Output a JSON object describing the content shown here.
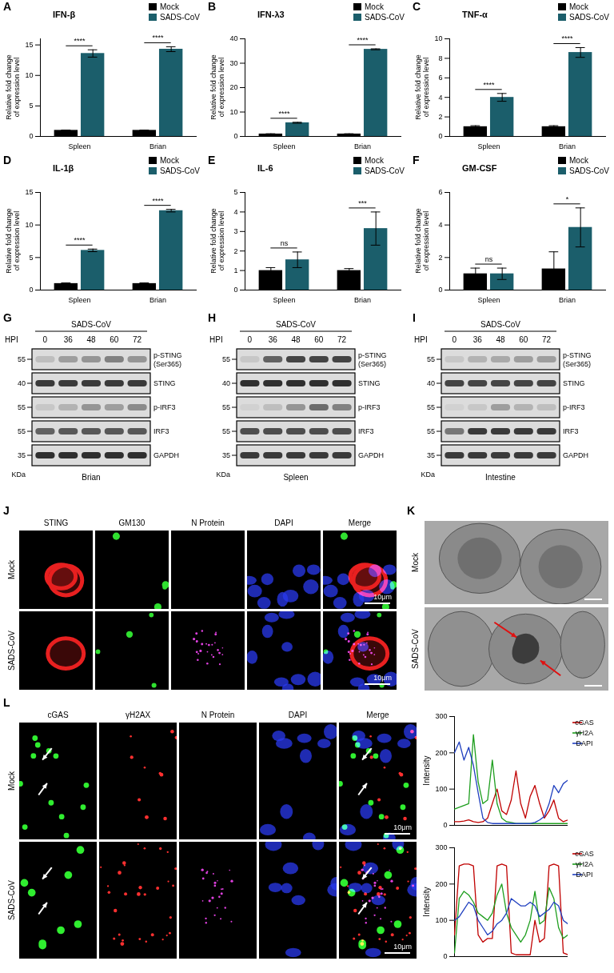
{
  "chart_data": [
    {
      "panel_label": "A",
      "type": "bar",
      "title": "IFN-β",
      "y_label": "Relative fold change of expression level",
      "categories": [
        "Spleen",
        "Brian"
      ],
      "series": [
        {
          "name": "Mock",
          "color": "#000000",
          "values": [
            1,
            1
          ],
          "errors": [
            0.05,
            0.05
          ]
        },
        {
          "name": "SADS-CoV",
          "color": "#1b5e6b",
          "values": [
            13.6,
            14.3
          ],
          "errors": [
            0.6,
            0.4
          ]
        }
      ],
      "significance": [
        "****",
        "****"
      ],
      "ylim": [
        0,
        16
      ],
      "yticks": [
        0,
        5,
        10,
        15
      ],
      "legend": "top right"
    },
    {
      "panel_label": "B",
      "type": "bar",
      "title": "IFN-λ3",
      "y_label": "Relative fold change of expression level",
      "categories": [
        "Spleen",
        "Brian"
      ],
      "series": [
        {
          "name": "Mock",
          "color": "#000000",
          "values": [
            1,
            1
          ],
          "errors": [
            0.1,
            0.1
          ]
        },
        {
          "name": "SADS-CoV",
          "color": "#1b5e6b",
          "values": [
            5.6,
            35.7
          ],
          "errors": [
            0.2,
            0.2
          ]
        }
      ],
      "significance": [
        "****",
        "****"
      ],
      "ylim": [
        0,
        40
      ],
      "yticks": [
        0,
        10,
        20,
        30,
        40
      ],
      "legend": "top right"
    },
    {
      "panel_label": "C",
      "type": "bar",
      "title": "TNF-α",
      "y_label": "Relative fold change of expression level",
      "categories": [
        "Spleen",
        "Brian"
      ],
      "series": [
        {
          "name": "Mock",
          "color": "#000000",
          "values": [
            1,
            1
          ],
          "errors": [
            0.1,
            0.1
          ]
        },
        {
          "name": "SADS-CoV",
          "color": "#1b5e6b",
          "values": [
            4.0,
            8.6
          ],
          "errors": [
            0.4,
            0.5
          ]
        }
      ],
      "significance": [
        "****",
        "****"
      ],
      "ylim": [
        0,
        10
      ],
      "yticks": [
        0,
        2,
        4,
        6,
        8,
        10
      ],
      "legend": "top right"
    },
    {
      "panel_label": "D",
      "type": "bar",
      "title": "IL-1β",
      "y_label": "Relative fold change of expression level",
      "categories": [
        "Spleen",
        "Brian"
      ],
      "series": [
        {
          "name": "Mock",
          "color": "#000000",
          "values": [
            1,
            1
          ],
          "errors": [
            0.1,
            0.1
          ]
        },
        {
          "name": "SADS-CoV",
          "color": "#1b5e6b",
          "values": [
            6.1,
            12.2
          ],
          "errors": [
            0.2,
            0.2
          ]
        }
      ],
      "significance": [
        "****",
        "****"
      ],
      "ylim": [
        0,
        15
      ],
      "yticks": [
        0,
        5,
        10,
        15
      ],
      "legend": "top right"
    },
    {
      "panel_label": "E",
      "type": "bar",
      "title": "IL-6",
      "y_label": "Relative fold change of expression level",
      "categories": [
        "Spleen",
        "Brian"
      ],
      "series": [
        {
          "name": "Mock",
          "color": "#000000",
          "values": [
            1.0,
            1.0
          ],
          "errors": [
            0.15,
            0.1
          ]
        },
        {
          "name": "SADS-CoV",
          "color": "#1b5e6b",
          "values": [
            1.55,
            3.15
          ],
          "errors": [
            0.4,
            0.85
          ]
        }
      ],
      "significance": [
        "ns",
        "***"
      ],
      "ylim": [
        0,
        5
      ],
      "yticks": [
        0,
        1,
        2,
        3,
        4,
        5
      ],
      "legend": "top right"
    },
    {
      "panel_label": "F",
      "type": "bar",
      "title": "GM-CSF",
      "y_label": "Relative fold change of expression level",
      "categories": [
        "Spleen",
        "Brian"
      ],
      "series": [
        {
          "name": "Mock",
          "color": "#000000",
          "values": [
            1.0,
            1.3
          ],
          "errors": [
            0.35,
            1.05
          ]
        },
        {
          "name": "SADS-CoV",
          "color": "#1b5e6b",
          "values": [
            1.0,
            3.85
          ],
          "errors": [
            0.35,
            1.2
          ]
        }
      ],
      "significance": [
        "ns",
        "*"
      ],
      "ylim": [
        0,
        6
      ],
      "yticks": [
        0,
        2,
        4,
        6
      ],
      "legend": "top right"
    },
    {
      "type": "line",
      "y_label": "Intensity",
      "tick_labels": "y",
      "legend": "right",
      "x": [
        0,
        1,
        2,
        3,
        4,
        5,
        6,
        7,
        8,
        9,
        10,
        11,
        12,
        13,
        14,
        15,
        16,
        17,
        18,
        19,
        20,
        21,
        22,
        23,
        24
      ],
      "xlim": [
        0,
        24
      ],
      "ylim": [
        0,
        300
      ],
      "yticks": [
        0,
        100,
        200,
        300
      ],
      "series": [
        {
          "name": "cGAS",
          "color": "#c00000",
          "values": [
            10,
            10,
            12,
            15,
            10,
            8,
            10,
            20,
            60,
            100,
            40,
            30,
            70,
            150,
            60,
            20,
            80,
            110,
            60,
            20,
            40,
            70,
            20,
            10,
            15
          ]
        },
        {
          "name": "γH2A",
          "color": "#1e9e1e",
          "values": [
            45,
            50,
            55,
            60,
            250,
            120,
            60,
            70,
            180,
            60,
            20,
            10,
            8,
            5,
            5,
            5,
            5,
            5,
            5,
            5,
            5,
            5,
            5,
            5,
            5
          ]
        },
        {
          "name": "DAPI",
          "color": "#1f3fbf",
          "values": [
            200,
            230,
            180,
            215,
            165,
            90,
            20,
            8,
            5,
            5,
            5,
            5,
            5,
            5,
            5,
            5,
            5,
            8,
            15,
            25,
            60,
            110,
            90,
            115,
            125
          ]
        }
      ]
    },
    {
      "type": "line",
      "y_label": "Intensity",
      "tick_labels": "y",
      "legend": "right",
      "x": [
        0,
        1,
        2,
        3,
        4,
        5,
        6,
        7,
        8,
        9,
        10,
        11,
        12,
        13,
        14,
        15,
        16,
        17,
        18,
        19,
        20,
        21,
        22,
        23,
        24
      ],
      "xlim": [
        0,
        24
      ],
      "ylim": [
        0,
        300
      ],
      "yticks": [
        0,
        100,
        200,
        300
      ],
      "series": [
        {
          "name": "cGAS",
          "color": "#c00000",
          "values": [
            60,
            250,
            255,
            255,
            250,
            60,
            40,
            50,
            50,
            250,
            255,
            250,
            10,
            5,
            5,
            5,
            5,
            100,
            40,
            50,
            250,
            255,
            250,
            10,
            5
          ]
        },
        {
          "name": "γH2A",
          "color": "#1e9e1e",
          "values": [
            10,
            160,
            180,
            170,
            150,
            120,
            110,
            100,
            120,
            170,
            200,
            120,
            80,
            60,
            40,
            60,
            100,
            180,
            90,
            100,
            190,
            160,
            80,
            50,
            60
          ]
        },
        {
          "name": "DAPI",
          "color": "#1f3fbf",
          "values": [
            100,
            110,
            130,
            150,
            140,
            100,
            80,
            60,
            70,
            90,
            100,
            120,
            160,
            150,
            140,
            140,
            150,
            140,
            110,
            120,
            130,
            150,
            140,
            100,
            90
          ]
        }
      ]
    }
  ],
  "blots": [
    {
      "panel_label": "G",
      "treatment": "SADS-CoV",
      "time_label": "HPI",
      "times": [
        0,
        36,
        48,
        60,
        72
      ],
      "tissue": "Brian",
      "mw_unit": "KDa",
      "rows": [
        {
          "name": "p-STING (Ser365)",
          "kda": 55,
          "intensity": [
            0.15,
            0.3,
            0.35,
            0.45,
            0.35
          ]
        },
        {
          "name": "STING",
          "kda": 40,
          "intensity": [
            0.8,
            0.8,
            0.8,
            0.8,
            0.8
          ]
        },
        {
          "name": "p-IRF3",
          "kda": 55,
          "intensity": [
            0.1,
            0.2,
            0.35,
            0.3,
            0.4
          ]
        },
        {
          "name": "IRF3",
          "kda": 55,
          "intensity": [
            0.6,
            0.65,
            0.65,
            0.65,
            0.65
          ]
        },
        {
          "name": "GAPDH",
          "kda": 35,
          "intensity": [
            0.85,
            0.85,
            0.85,
            0.85,
            0.85
          ]
        }
      ]
    },
    {
      "panel_label": "H",
      "treatment": "SADS-CoV",
      "time_label": "HPI",
      "times": [
        0,
        36,
        48,
        60,
        72
      ],
      "tissue": "Spleen",
      "mw_unit": "KDa",
      "rows": [
        {
          "name": "p-STING (Ser365)",
          "kda": 55,
          "intensity": [
            0.1,
            0.6,
            0.75,
            0.75,
            0.75
          ]
        },
        {
          "name": "STING",
          "kda": 40,
          "intensity": [
            0.85,
            0.85,
            0.85,
            0.85,
            0.85
          ]
        },
        {
          "name": "p-IRF3",
          "kda": 55,
          "intensity": [
            0.05,
            0.15,
            0.35,
            0.55,
            0.45
          ]
        },
        {
          "name": "IRF3",
          "kda": 55,
          "intensity": [
            0.7,
            0.7,
            0.7,
            0.7,
            0.7
          ]
        },
        {
          "name": "GAPDH",
          "kda": 35,
          "intensity": [
            0.8,
            0.8,
            0.8,
            0.8,
            0.8
          ]
        }
      ]
    },
    {
      "panel_label": "I",
      "treatment": "SADS-CoV",
      "time_label": "HPI",
      "times": [
        0,
        36,
        48,
        60,
        72
      ],
      "tissue": "Intestine",
      "mw_unit": "KDa",
      "rows": [
        {
          "name": "p-STING (Ser365)",
          "kda": 55,
          "intensity": [
            0.1,
            0.2,
            0.25,
            0.3,
            0.3
          ]
        },
        {
          "name": "STING",
          "kda": 40,
          "intensity": [
            0.75,
            0.75,
            0.75,
            0.75,
            0.75
          ]
        },
        {
          "name": "p-IRF3",
          "kda": 55,
          "intensity": [
            0.05,
            0.1,
            0.3,
            0.2,
            0.15
          ]
        },
        {
          "name": "IRF3",
          "kda": 55,
          "intensity": [
            0.5,
            0.8,
            0.8,
            0.8,
            0.8
          ]
        },
        {
          "name": "GAPDH",
          "kda": 35,
          "intensity": [
            0.8,
            0.8,
            0.8,
            0.8,
            0.8
          ]
        }
      ]
    }
  ],
  "micrographs": [
    {
      "panel_label": "J",
      "rows": [
        "Mock",
        "SADS-CoV"
      ],
      "channels": [
        "STING",
        "GM130",
        "N Protein",
        "DAPI",
        "Merge"
      ],
      "scale_bar": "10μm"
    },
    {
      "panel_label": "K",
      "rows": [
        "Mock",
        "SADS-CoV"
      ]
    },
    {
      "panel_label": "L",
      "rows": [
        "Mock",
        "SADS-CoV"
      ],
      "channels": [
        "cGAS",
        "γH2AX",
        "N Protein",
        "DAPI",
        "Merge"
      ],
      "scale_bar": "10μm"
    }
  ]
}
